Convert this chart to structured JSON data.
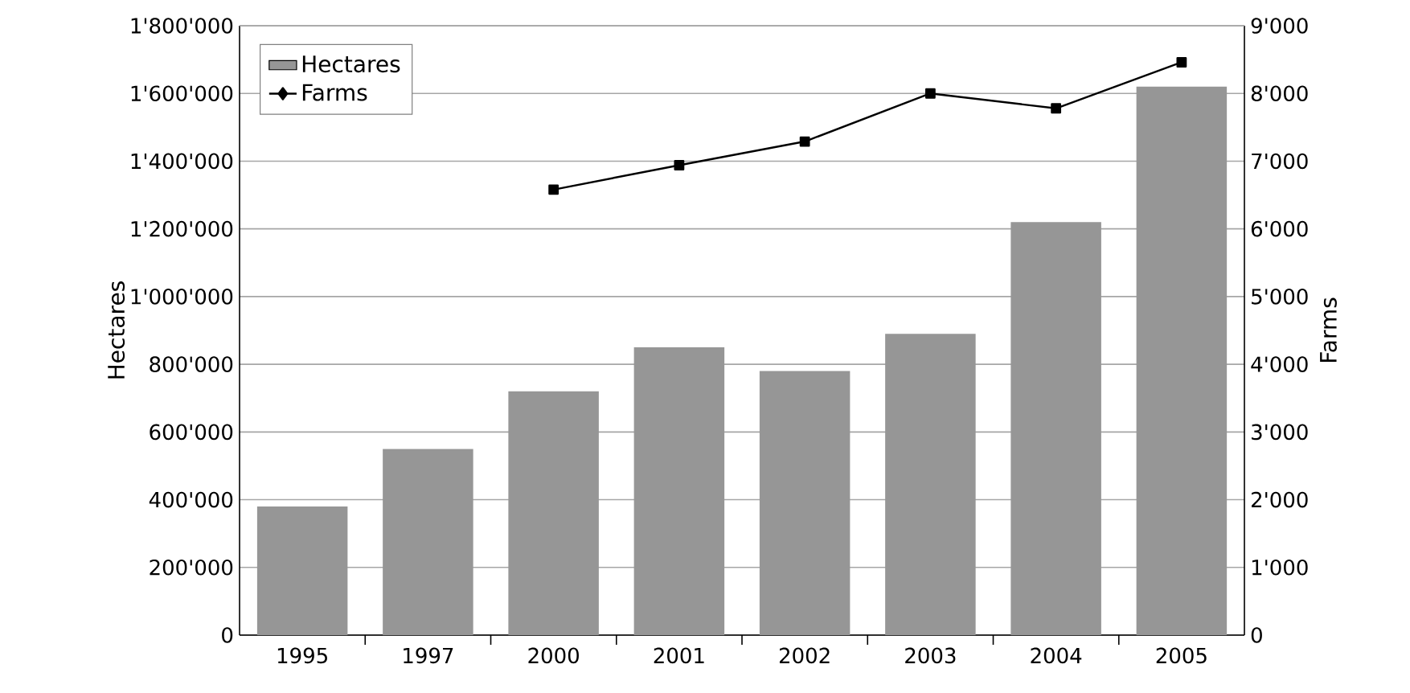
{
  "chart_data": {
    "type": "bar",
    "ylabel": "Hectares",
    "y2label": "Farms",
    "categories": [
      "1995",
      "1997",
      "2000",
      "2001",
      "2002",
      "2003",
      "2004",
      "2005"
    ],
    "series": [
      {
        "name": "Hectares",
        "color": "#969696",
        "values": [
          380000,
          550000,
          720000,
          850000,
          780000,
          890000,
          1220000,
          1620000
        ]
      },
      {
        "name": "Farms",
        "type": "line",
        "axis": "y2",
        "color": "#000000",
        "marker": "square",
        "values": [
          null,
          null,
          6580,
          6940,
          7290,
          8000,
          7780,
          8460
        ]
      }
    ],
    "ylim": [
      0,
      1800000
    ],
    "yticks": [
      0,
      {
        "value": 200000,
        "label": "200'000"
      },
      {
        "value": 400000,
        "label": "400'000"
      },
      {
        "value": 600000,
        "label": "600'000"
      },
      {
        "value": 800000,
        "label": "800'000"
      },
      {
        "value": 1000000,
        "label": "1'000'000"
      },
      {
        "value": 1200000,
        "label": "1'200'000"
      },
      {
        "value": 1400000,
        "label": "1'400'000"
      },
      {
        "value": 1600000,
        "label": "1'600'000"
      },
      {
        "value": 1800000,
        "label": "1'800'000"
      }
    ],
    "y2lim": [
      0,
      9000
    ],
    "y2ticks": [
      0,
      {
        "value": 1000,
        "label": "1'000"
      },
      {
        "value": 2000,
        "label": "2'000"
      },
      {
        "value": 3000,
        "label": "3'000"
      },
      {
        "value": 4000,
        "label": "4'000"
      },
      {
        "value": 5000,
        "label": "5'000"
      },
      {
        "value": 6000,
        "label": "6'000"
      },
      {
        "value": 7000,
        "label": "7'000"
      },
      {
        "value": 8000,
        "label": "8'000"
      },
      {
        "value": 9000,
        "label": "9'000"
      }
    ],
    "grid": "y",
    "legend": "top left"
  }
}
